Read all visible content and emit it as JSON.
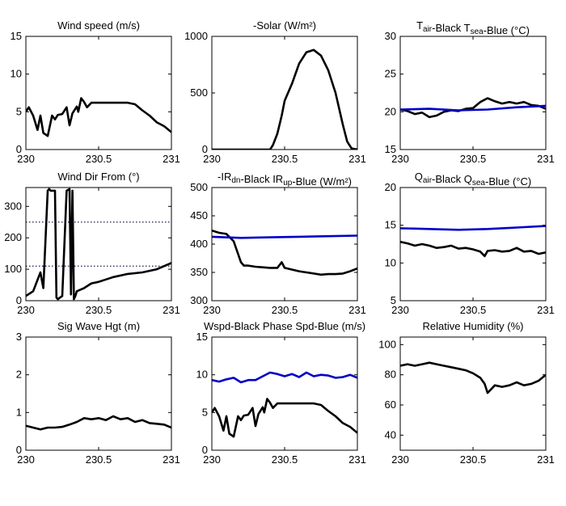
{
  "chart_data": [
    {
      "type": "line",
      "title": "Wind speed (m/s)",
      "xlim": [
        230,
        231
      ],
      "ylim": [
        0,
        15
      ],
      "xticks": [
        "230",
        "230.5",
        "231"
      ],
      "yticks": [
        "0",
        "5",
        "10",
        "15"
      ],
      "series": [
        {
          "color": "#000000",
          "x": [
            230,
            230.02,
            230.05,
            230.08,
            230.1,
            230.12,
            230.15,
            230.18,
            230.2,
            230.22,
            230.25,
            230.28,
            230.3,
            230.32,
            230.35,
            230.36,
            230.38,
            230.4,
            230.42,
            230.45,
            230.5,
            230.6,
            230.7,
            230.75,
            230.8,
            230.85,
            230.9,
            230.95,
            231
          ],
          "y": [
            5.0,
            5.6,
            4.5,
            2.6,
            4.5,
            2.2,
            1.8,
            4.5,
            4.0,
            4.6,
            4.7,
            5.6,
            3.2,
            4.8,
            5.7,
            5.0,
            6.8,
            6.3,
            5.6,
            6.2,
            6.2,
            6.2,
            6.2,
            6.0,
            5.2,
            4.5,
            3.6,
            3.1,
            2.3
          ]
        }
      ]
    },
    {
      "type": "line",
      "title": "-Solar (W/m²)",
      "xlim": [
        230,
        231
      ],
      "ylim": [
        0,
        1000
      ],
      "xticks": [
        "230",
        "230.5",
        "231"
      ],
      "yticks": [
        "0",
        "500",
        "1000"
      ],
      "series": [
        {
          "color": "#000000",
          "x": [
            230,
            230.4,
            230.42,
            230.45,
            230.48,
            230.5,
            230.55,
            230.6,
            230.65,
            230.7,
            230.75,
            230.8,
            230.85,
            230.9,
            230.93,
            230.96,
            231
          ],
          "y": [
            0,
            0,
            40,
            140,
            300,
            430,
            580,
            760,
            860,
            880,
            830,
            700,
            500,
            220,
            70,
            10,
            0
          ]
        }
      ]
    },
    {
      "type": "line",
      "title": "T_air-Black  T_sea-Blue (°C)",
      "xlim": [
        230,
        231
      ],
      "ylim": [
        15,
        30
      ],
      "xticks": [
        "230",
        "230.5",
        "231"
      ],
      "yticks": [
        "15",
        "20",
        "25",
        "30"
      ],
      "series": [
        {
          "color": "#000000",
          "x": [
            230,
            230.05,
            230.1,
            230.15,
            230.2,
            230.25,
            230.3,
            230.35,
            230.4,
            230.45,
            230.5,
            230.55,
            230.6,
            230.65,
            230.7,
            230.75,
            230.8,
            230.85,
            230.9,
            230.95,
            231
          ],
          "y": [
            20.3,
            20.1,
            19.7,
            19.9,
            19.3,
            19.5,
            20.0,
            20.2,
            20.1,
            20.4,
            20.5,
            21.3,
            21.8,
            21.4,
            21.1,
            21.3,
            21.1,
            21.3,
            20.9,
            20.8,
            20.4
          ]
        },
        {
          "color": "#0000c8",
          "x": [
            230,
            230.2,
            230.4,
            230.6,
            230.8,
            231
          ],
          "y": [
            20.3,
            20.4,
            20.2,
            20.3,
            20.6,
            20.8
          ]
        }
      ]
    },
    {
      "type": "line",
      "title": "Wind Dir From (°)",
      "xlim": [
        230,
        231
      ],
      "ylim": [
        0,
        360
      ],
      "xticks": [
        "230",
        "230.5",
        "231"
      ],
      "yticks": [
        "0",
        "100",
        "200",
        "300"
      ],
      "reference_lines": [
        250,
        110
      ],
      "series": [
        {
          "color": "#000000",
          "x": [
            230,
            230.05,
            230.1,
            230.12,
            230.15,
            230.16,
            230.17,
            230.2,
            230.21,
            230.22,
            230.25,
            230.28,
            230.3,
            230.31,
            230.32,
            230.33,
            230.34,
            230.35,
            230.4,
            230.45,
            230.5,
            230.6,
            230.7,
            230.8,
            230.9,
            230.95,
            231
          ],
          "y": [
            15,
            30,
            90,
            40,
            350,
            355,
            350,
            350,
            10,
            5,
            15,
            350,
            355,
            20,
            350,
            5,
            15,
            30,
            40,
            55,
            60,
            75,
            85,
            90,
            100,
            110,
            120
          ]
        }
      ]
    },
    {
      "type": "line",
      "title": "-IR_dn-Black  IR_up-Blue (W/m²)",
      "xlim": [
        230,
        231
      ],
      "ylim": [
        300,
        500
      ],
      "xticks": [
        "230",
        "230.5",
        "231"
      ],
      "yticks": [
        "300",
        "350",
        "400",
        "450",
        "500"
      ],
      "series": [
        {
          "color": "#000000",
          "x": [
            230,
            230.05,
            230.1,
            230.15,
            230.2,
            230.22,
            230.25,
            230.3,
            230.35,
            230.4,
            230.45,
            230.48,
            230.5,
            230.55,
            230.6,
            230.65,
            230.7,
            230.75,
            230.8,
            230.85,
            230.9,
            230.95,
            231
          ],
          "y": [
            424,
            420,
            418,
            405,
            368,
            362,
            362,
            360,
            359,
            358,
            358,
            368,
            358,
            355,
            352,
            350,
            348,
            346,
            347,
            347,
            348,
            352,
            357
          ]
        },
        {
          "color": "#0000c8",
          "x": [
            230,
            230.2,
            230.4,
            230.6,
            230.8,
            231
          ],
          "y": [
            413,
            411,
            412,
            413,
            414,
            415
          ]
        }
      ]
    },
    {
      "type": "line",
      "title": "Q_air-Black  Q_sea-Blue (°C)",
      "xlim": [
        230,
        231
      ],
      "ylim": [
        5,
        20
      ],
      "xticks": [
        "230",
        "230.5",
        "231"
      ],
      "yticks": [
        "5",
        "10",
        "15",
        "20"
      ],
      "series": [
        {
          "color": "#000000",
          "x": [
            230,
            230.05,
            230.1,
            230.15,
            230.2,
            230.25,
            230.3,
            230.35,
            230.4,
            230.45,
            230.5,
            230.55,
            230.58,
            230.6,
            230.65,
            230.7,
            230.75,
            230.8,
            230.85,
            230.9,
            230.95,
            231
          ],
          "y": [
            12.8,
            12.6,
            12.3,
            12.5,
            12.3,
            12.0,
            12.1,
            12.3,
            11.9,
            12.0,
            11.8,
            11.5,
            10.9,
            11.6,
            11.7,
            11.5,
            11.6,
            12.0,
            11.5,
            11.6,
            11.2,
            11.4
          ]
        },
        {
          "color": "#0000c8",
          "x": [
            230,
            230.2,
            230.4,
            230.6,
            230.8,
            231
          ],
          "y": [
            14.6,
            14.5,
            14.4,
            14.5,
            14.7,
            14.9
          ]
        }
      ]
    },
    {
      "type": "line",
      "title": "Sig Wave Hgt (m)",
      "xlim": [
        230,
        231
      ],
      "ylim": [
        0,
        3
      ],
      "xticks": [
        "230",
        "230.5",
        "231"
      ],
      "yticks": [
        "0",
        "1",
        "2",
        "3"
      ],
      "series": [
        {
          "color": "#000000",
          "x": [
            230,
            230.05,
            230.1,
            230.15,
            230.2,
            230.25,
            230.3,
            230.35,
            230.4,
            230.45,
            230.5,
            230.55,
            230.6,
            230.65,
            230.7,
            230.75,
            230.8,
            230.85,
            230.9,
            230.95,
            231
          ],
          "y": [
            0.65,
            0.6,
            0.55,
            0.6,
            0.6,
            0.62,
            0.68,
            0.75,
            0.85,
            0.82,
            0.85,
            0.8,
            0.9,
            0.82,
            0.85,
            0.75,
            0.8,
            0.72,
            0.7,
            0.68,
            0.6
          ]
        }
      ]
    },
    {
      "type": "line",
      "title": "Wspd-Black  Phase Spd-Blue (m/s)",
      "xlim": [
        230,
        231
      ],
      "ylim": [
        0,
        15
      ],
      "xticks": [
        "230",
        "230.5",
        "231"
      ],
      "yticks": [
        "0",
        "5",
        "10",
        "15"
      ],
      "series": [
        {
          "color": "#000000",
          "x": [
            230,
            230.02,
            230.05,
            230.08,
            230.1,
            230.12,
            230.15,
            230.18,
            230.2,
            230.22,
            230.25,
            230.28,
            230.3,
            230.32,
            230.35,
            230.36,
            230.38,
            230.4,
            230.42,
            230.45,
            230.5,
            230.6,
            230.7,
            230.75,
            230.8,
            230.85,
            230.9,
            230.95,
            231
          ],
          "y": [
            5.0,
            5.6,
            4.5,
            2.6,
            4.5,
            2.2,
            1.8,
            4.5,
            4.0,
            4.6,
            4.7,
            5.6,
            3.2,
            4.8,
            5.7,
            5.0,
            6.8,
            6.3,
            5.6,
            6.2,
            6.2,
            6.2,
            6.2,
            6.0,
            5.2,
            4.5,
            3.6,
            3.1,
            2.3
          ]
        },
        {
          "color": "#0000c8",
          "x": [
            230,
            230.05,
            230.1,
            230.15,
            230.2,
            230.25,
            230.3,
            230.35,
            230.4,
            230.45,
            230.5,
            230.55,
            230.6,
            230.65,
            230.7,
            230.75,
            230.8,
            230.85,
            230.9,
            230.95,
            231
          ],
          "y": [
            9.3,
            9.1,
            9.4,
            9.6,
            9.0,
            9.3,
            9.3,
            9.8,
            10.3,
            10.1,
            9.8,
            10.1,
            9.7,
            10.3,
            9.8,
            10.0,
            9.9,
            9.6,
            9.7,
            10.0,
            9.6
          ]
        }
      ]
    },
    {
      "type": "line",
      "title": "Relative Humidity (%)",
      "xlim": [
        230,
        231
      ],
      "ylim": [
        30,
        105
      ],
      "xticks": [
        "230",
        "230.5",
        "231"
      ],
      "yticks": [
        "40",
        "60",
        "80",
        "100"
      ],
      "series": [
        {
          "color": "#000000",
          "x": [
            230,
            230.05,
            230.1,
            230.15,
            230.2,
            230.25,
            230.3,
            230.35,
            230.4,
            230.45,
            230.5,
            230.55,
            230.58,
            230.6,
            230.65,
            230.7,
            230.75,
            230.8,
            230.85,
            230.9,
            230.95,
            231
          ],
          "y": [
            86,
            87,
            86,
            87,
            88,
            87,
            86,
            85,
            84,
            83,
            81,
            78,
            74,
            68,
            73,
            72,
            73,
            75,
            73,
            74,
            76,
            80
          ]
        }
      ]
    }
  ]
}
